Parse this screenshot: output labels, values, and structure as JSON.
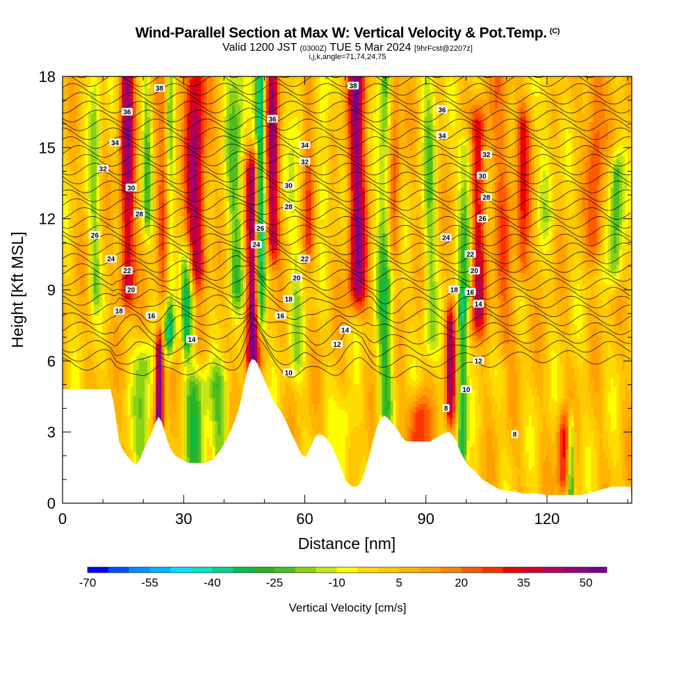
{
  "header": {
    "title": "Wind-Parallel Section at Max W: Vertical Velocity & Pot.Temp.",
    "copyright": "(C)",
    "subtitle_a": "Valid 1200 JST",
    "subtitle_b": "(0300Z)",
    "subtitle_c": "TUE 5 Mar 2024",
    "subtitle_d": "[9hrFcst@2207z]",
    "params": "i,j,k,angle=71,74,24,75"
  },
  "colors": {
    "terrain": "#ffffff",
    "contour": "#000000",
    "palette": [
      "#0000ff",
      "#0050ff",
      "#0090ff",
      "#00b4ff",
      "#00e0ff",
      "#00e8c8",
      "#00d28c",
      "#00c050",
      "#28b428",
      "#50be1e",
      "#8cd214",
      "#c8e614",
      "#ffff00",
      "#ffdc00",
      "#ffc800",
      "#ffb400",
      "#ffa000",
      "#ff8200",
      "#ff5a00",
      "#ff3200",
      "#f00000",
      "#d2002d",
      "#b4005a",
      "#960078",
      "#780096"
    ]
  },
  "chart_data": {
    "type": "heatmap",
    "xlabel": "Distance [nm]",
    "ylabel": "Height [Kft MSL]",
    "xlim": [
      0,
      141
    ],
    "ylim": [
      0,
      18
    ],
    "x_ticks": [
      0,
      30,
      60,
      90,
      120
    ],
    "y_ticks": [
      0,
      3,
      6,
      9,
      12,
      15,
      18
    ],
    "colorbar": {
      "title": "Vertical Velocity [cm/s]",
      "min": -70,
      "max": 55,
      "step": 5,
      "tick_values": [
        -70,
        -55,
        -40,
        -25,
        -10,
        5,
        20,
        35,
        50
      ],
      "tick_labels": [
        "-70",
        "-55",
        "-40",
        "-25",
        "-10",
        "5",
        "20",
        "35",
        "50"
      ]
    },
    "terrain_top_kft": [
      [
        0,
        4.8
      ],
      [
        7,
        4.8
      ],
      [
        12,
        4.8
      ],
      [
        12.5,
        4.4
      ],
      [
        13,
        3.8
      ],
      [
        13.5,
        3.2
      ],
      [
        14,
        2.6
      ],
      [
        15,
        2.2
      ],
      [
        16,
        2.0
      ],
      [
        17,
        1.8
      ],
      [
        18,
        1.6
      ],
      [
        19,
        1.8
      ],
      [
        20,
        2.2
      ],
      [
        21,
        2.6
      ],
      [
        22,
        2.9
      ],
      [
        23,
        3.4
      ],
      [
        24,
        3.7
      ],
      [
        25,
        3.2
      ],
      [
        26,
        2.6
      ],
      [
        27,
        2.2
      ],
      [
        28,
        2.0
      ],
      [
        29,
        1.9
      ],
      [
        30,
        1.8
      ],
      [
        31,
        1.7
      ],
      [
        33,
        1.7
      ],
      [
        35,
        1.7
      ],
      [
        37,
        1.8
      ],
      [
        39,
        2.2
      ],
      [
        41,
        2.8
      ],
      [
        43,
        3.6
      ],
      [
        44,
        4.2
      ],
      [
        45,
        5.0
      ],
      [
        46,
        5.8
      ],
      [
        47,
        6.1
      ],
      [
        48,
        6.0
      ],
      [
        49,
        5.6
      ],
      [
        50,
        5.2
      ],
      [
        51,
        4.8
      ],
      [
        52,
        4.4
      ],
      [
        53,
        4.1
      ],
      [
        54,
        3.9
      ],
      [
        55,
        3.6
      ],
      [
        56,
        3.2
      ],
      [
        57,
        2.8
      ],
      [
        58,
        2.5
      ],
      [
        59,
        2.1
      ],
      [
        60,
        1.9
      ],
      [
        61,
        2.2
      ],
      [
        62,
        2.6
      ],
      [
        63,
        2.9
      ],
      [
        64,
        2.9
      ],
      [
        65,
        2.8
      ],
      [
        66,
        2.6
      ],
      [
        67,
        2.3
      ],
      [
        68,
        1.9
      ],
      [
        69,
        1.5
      ],
      [
        70,
        1.0
      ],
      [
        71,
        0.8
      ],
      [
        72,
        0.7
      ],
      [
        73,
        0.7
      ],
      [
        74,
        0.9
      ],
      [
        75,
        1.4
      ],
      [
        76,
        2.0
      ],
      [
        77,
        2.7
      ],
      [
        78,
        3.3
      ],
      [
        79,
        3.6
      ],
      [
        80,
        3.7
      ],
      [
        81,
        3.5
      ],
      [
        82,
        3.3
      ],
      [
        83,
        3.1
      ],
      [
        84,
        2.8
      ],
      [
        85,
        2.6
      ],
      [
        86,
        2.6
      ],
      [
        87,
        2.6
      ],
      [
        88,
        2.6
      ],
      [
        89,
        2.6
      ],
      [
        90,
        2.6
      ],
      [
        91,
        2.6
      ],
      [
        92,
        2.7
      ],
      [
        93,
        2.8
      ],
      [
        94,
        2.9
      ],
      [
        95,
        3.0
      ],
      [
        96,
        3.0
      ],
      [
        97,
        2.8
      ],
      [
        98,
        2.4
      ],
      [
        99,
        2.0
      ],
      [
        100,
        1.7
      ],
      [
        101,
        1.5
      ],
      [
        102,
        1.4
      ],
      [
        103,
        1.2
      ],
      [
        104,
        1.0
      ],
      [
        105,
        0.9
      ],
      [
        106,
        0.8
      ],
      [
        107,
        0.7
      ],
      [
        108,
        0.6
      ],
      [
        110,
        0.5
      ],
      [
        112,
        0.5
      ],
      [
        114,
        0.4
      ],
      [
        116,
        0.4
      ],
      [
        118,
        0.4
      ],
      [
        120,
        0.35
      ],
      [
        122,
        0.35
      ],
      [
        124,
        0.35
      ],
      [
        126,
        0.35
      ],
      [
        128,
        0.35
      ],
      [
        130,
        0.4
      ],
      [
        132,
        0.5
      ],
      [
        134,
        0.6
      ],
      [
        136,
        0.7
      ],
      [
        138,
        0.7
      ],
      [
        141,
        0.7
      ]
    ],
    "velocity_features": [
      {
        "x": 8,
        "z0": 9,
        "z1": 18,
        "w": 1.5,
        "amp": -18
      },
      {
        "x": 16,
        "z0": 9,
        "z1": 18,
        "w": 1.8,
        "amp": 40
      },
      {
        "x": 20,
        "z0": 2,
        "z1": 6,
        "w": 2.2,
        "amp": -22
      },
      {
        "x": 21,
        "z0": 12,
        "z1": 18,
        "w": 1.2,
        "amp": -20
      },
      {
        "x": 24,
        "z0": 3.5,
        "z1": 6.5,
        "w": 1.0,
        "amp": 60
      },
      {
        "x": 26,
        "z0": 9,
        "z1": 18,
        "w": 2.0,
        "amp": 35
      },
      {
        "x": 26.5,
        "z0": 7,
        "z1": 18,
        "w": 1.4,
        "amp": -45
      },
      {
        "x": 31,
        "z0": 7,
        "z1": 10,
        "w": 1.5,
        "amp": -35
      },
      {
        "x": 33,
        "z0": 1.5,
        "z1": 5,
        "w": 3.0,
        "amp": -25
      },
      {
        "x": 33,
        "z0": 10,
        "z1": 18,
        "w": 2.5,
        "amp": 40
      },
      {
        "x": 39,
        "z0": 1.5,
        "z1": 5,
        "w": 2.5,
        "amp": -20
      },
      {
        "x": 43,
        "z0": 9,
        "z1": 18,
        "w": 2.5,
        "amp": -22
      },
      {
        "x": 47,
        "z0": 6,
        "z1": 14,
        "w": 1.6,
        "amp": 45
      },
      {
        "x": 49,
        "z0": 8,
        "z1": 18,
        "w": 1.2,
        "amp": -40
      },
      {
        "x": 52,
        "z0": 11,
        "z1": 18,
        "w": 1.6,
        "amp": 38
      },
      {
        "x": 58,
        "z0": 6,
        "z1": 18,
        "w": 2.0,
        "amp": -12
      },
      {
        "x": 61,
        "z0": 11,
        "z1": 18,
        "w": 1.5,
        "amp": 20
      },
      {
        "x": 65,
        "z0": 13,
        "z1": 18,
        "w": 1.5,
        "amp": -15
      },
      {
        "x": 70,
        "z0": 1,
        "z1": 3.5,
        "w": 2.0,
        "amp": -15
      },
      {
        "x": 73,
        "z0": 9,
        "z1": 18,
        "w": 2.2,
        "amp": 42
      },
      {
        "x": 80,
        "z0": 4,
        "z1": 18,
        "w": 2.0,
        "amp": -28
      },
      {
        "x": 82,
        "z0": 11,
        "z1": 18,
        "w": 1.6,
        "amp": 25
      },
      {
        "x": 88,
        "z0": 2.6,
        "z1": 3.8,
        "w": 2.5,
        "amp": 30
      },
      {
        "x": 91,
        "z0": 7,
        "z1": 18,
        "w": 1.8,
        "amp": -18
      },
      {
        "x": 96,
        "z0": 4,
        "z1": 7.5,
        "w": 1.2,
        "amp": 40
      },
      {
        "x": 99,
        "z0": 2,
        "z1": 8,
        "w": 1.2,
        "amp": -35
      },
      {
        "x": 100,
        "z0": 9,
        "z1": 15,
        "w": 1.8,
        "amp": -25
      },
      {
        "x": 103,
        "z0": 8,
        "z1": 16,
        "w": 2.0,
        "amp": 32
      },
      {
        "x": 109,
        "z0": 7,
        "z1": 18,
        "w": 2.5,
        "amp": 15
      },
      {
        "x": 114,
        "z0": 10,
        "z1": 16,
        "w": 1.8,
        "amp": 25
      },
      {
        "x": 120,
        "z0": 12,
        "z1": 18,
        "w": 2.0,
        "amp": -10
      },
      {
        "x": 124,
        "z0": 1,
        "z1": 3,
        "w": 1.5,
        "amp": 28
      },
      {
        "x": 126,
        "z0": 0.4,
        "z1": 3,
        "w": 0.8,
        "amp": -35
      },
      {
        "x": 132,
        "z0": 11,
        "z1": 18,
        "w": 2.0,
        "amp": 22
      },
      {
        "x": 137,
        "z0": 10,
        "z1": 14,
        "w": 1.8,
        "amp": -28
      }
    ],
    "theta_contour_labels": [
      {
        "x": 24,
        "z": 17.5,
        "text": "38"
      },
      {
        "x": 16,
        "z": 16.5,
        "text": "36"
      },
      {
        "x": 13,
        "z": 15.2,
        "text": "34"
      },
      {
        "x": 10,
        "z": 14.1,
        "text": "32"
      },
      {
        "x": 17,
        "z": 13.3,
        "text": "30"
      },
      {
        "x": 19,
        "z": 12.2,
        "text": "28"
      },
      {
        "x": 8,
        "z": 11.3,
        "text": "26"
      },
      {
        "x": 12,
        "z": 10.3,
        "text": "24"
      },
      {
        "x": 16,
        "z": 9.8,
        "text": "22"
      },
      {
        "x": 17,
        "z": 9.0,
        "text": "20"
      },
      {
        "x": 14,
        "z": 8.1,
        "text": "18"
      },
      {
        "x": 22,
        "z": 7.9,
        "text": "16"
      },
      {
        "x": 32,
        "z": 6.9,
        "text": "14"
      },
      {
        "x": 52,
        "z": 16.2,
        "text": "36"
      },
      {
        "x": 49,
        "z": 11.6,
        "text": "26"
      },
      {
        "x": 48,
        "z": 10.9,
        "text": "24"
      },
      {
        "x": 60,
        "z": 10.3,
        "text": "22"
      },
      {
        "x": 58,
        "z": 9.5,
        "text": "20"
      },
      {
        "x": 56,
        "z": 8.6,
        "text": "18"
      },
      {
        "x": 54,
        "z": 7.9,
        "text": "16"
      },
      {
        "x": 60,
        "z": 15.1,
        "text": "34"
      },
      {
        "x": 60,
        "z": 14.4,
        "text": "32"
      },
      {
        "x": 56,
        "z": 13.4,
        "text": "30"
      },
      {
        "x": 56,
        "z": 12.5,
        "text": "28"
      },
      {
        "x": 72,
        "z": 17.6,
        "text": "38"
      },
      {
        "x": 70,
        "z": 7.3,
        "text": "14"
      },
      {
        "x": 68,
        "z": 6.7,
        "text": "12"
      },
      {
        "x": 56,
        "z": 5.5,
        "text": "10"
      },
      {
        "x": 94,
        "z": 16.6,
        "text": "36"
      },
      {
        "x": 94,
        "z": 15.5,
        "text": "34"
      },
      {
        "x": 105,
        "z": 14.7,
        "text": "32"
      },
      {
        "x": 104,
        "z": 13.8,
        "text": "30"
      },
      {
        "x": 105,
        "z": 12.9,
        "text": "28"
      },
      {
        "x": 104,
        "z": 12.0,
        "text": "26"
      },
      {
        "x": 95,
        "z": 11.2,
        "text": "24"
      },
      {
        "x": 101,
        "z": 10.5,
        "text": "22"
      },
      {
        "x": 102,
        "z": 9.8,
        "text": "20"
      },
      {
        "x": 97,
        "z": 9.0,
        "text": "18"
      },
      {
        "x": 101,
        "z": 8.9,
        "text": "16"
      },
      {
        "x": 103,
        "z": 8.4,
        "text": "14"
      },
      {
        "x": 103,
        "z": 6.0,
        "text": "12"
      },
      {
        "x": 100,
        "z": 4.8,
        "text": "10"
      },
      {
        "x": 95,
        "z": 4.0,
        "text": "8"
      },
      {
        "x": 112,
        "z": 2.9,
        "text": "8"
      }
    ]
  }
}
